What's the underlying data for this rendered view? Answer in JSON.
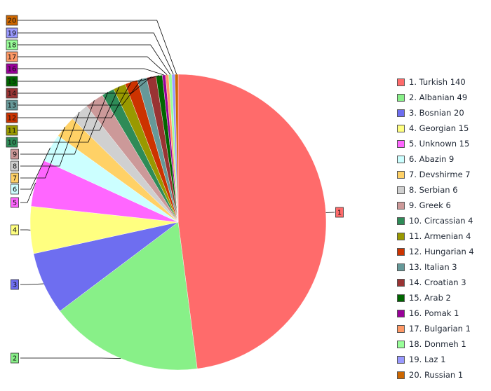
{
  "chart_data": {
    "type": "pie",
    "title": "",
    "slices": [
      {
        "id": "1",
        "label": "Turkish",
        "value": 140,
        "color": "#ff6b6b",
        "legend": "1. Turkish 140"
      },
      {
        "id": "2",
        "label": "Albanian",
        "value": 49,
        "color": "#88f088",
        "legend": "2. Albanian 49"
      },
      {
        "id": "3",
        "label": "Bosnian",
        "value": 20,
        "color": "#6e6ef0",
        "legend": "3. Bosnian 20"
      },
      {
        "id": "4",
        "label": "Georgian",
        "value": 15,
        "color": "#ffff80",
        "legend": "4. Georgian 15"
      },
      {
        "id": "5",
        "label": "Unknown",
        "value": 15,
        "color": "#ff66ff",
        "legend": "5. Unknown 15"
      },
      {
        "id": "6",
        "label": "Abazin",
        "value": 9,
        "color": "#ccffff",
        "legend": "6. Abazin 9"
      },
      {
        "id": "7",
        "label": "Devshirme",
        "value": 7,
        "color": "#ffd166",
        "legend": "7. Devshirme 7"
      },
      {
        "id": "8",
        "label": "Serbian",
        "value": 6,
        "color": "#d0d0d0",
        "legend": "8. Serbian 6"
      },
      {
        "id": "9",
        "label": "Greek",
        "value": 6,
        "color": "#cc9999",
        "legend": "9. Greek 6"
      },
      {
        "id": "10",
        "label": "Circassian",
        "value": 4,
        "color": "#2e8b57",
        "legend": "10. Circassian 4"
      },
      {
        "id": "11",
        "label": "Armenian",
        "value": 4,
        "color": "#999900",
        "legend": "11. Armenian 4"
      },
      {
        "id": "12",
        "label": "Hungarian",
        "value": 4,
        "color": "#cc3300",
        "legend": "12. Hungarian 4"
      },
      {
        "id": "13",
        "label": "Italian",
        "value": 3,
        "color": "#669999",
        "legend": "13. Italian 3"
      },
      {
        "id": "14",
        "label": "Croatian",
        "value": 3,
        "color": "#993333",
        "legend": "14. Croatian 3"
      },
      {
        "id": "15",
        "label": "Arab",
        "value": 2,
        "color": "#006600",
        "legend": "15. Arab 2"
      },
      {
        "id": "16",
        "label": "Pomak",
        "value": 1,
        "color": "#990099",
        "legend": "16. Pomak 1"
      },
      {
        "id": "17",
        "label": "Bulgarian",
        "value": 1,
        "color": "#ff9966",
        "legend": "17. Bulgarian 1"
      },
      {
        "id": "18",
        "label": "Donmeh",
        "value": 1,
        "color": "#99ff99",
        "legend": "18. Donmeh 1"
      },
      {
        "id": "19",
        "label": "Laz",
        "value": 1,
        "color": "#9999ff",
        "legend": "19. Laz 1"
      },
      {
        "id": "20",
        "label": "Russian",
        "value": 1,
        "color": "#cc6600",
        "legend": "20. Russian 1"
      }
    ],
    "legend_position": "right"
  }
}
